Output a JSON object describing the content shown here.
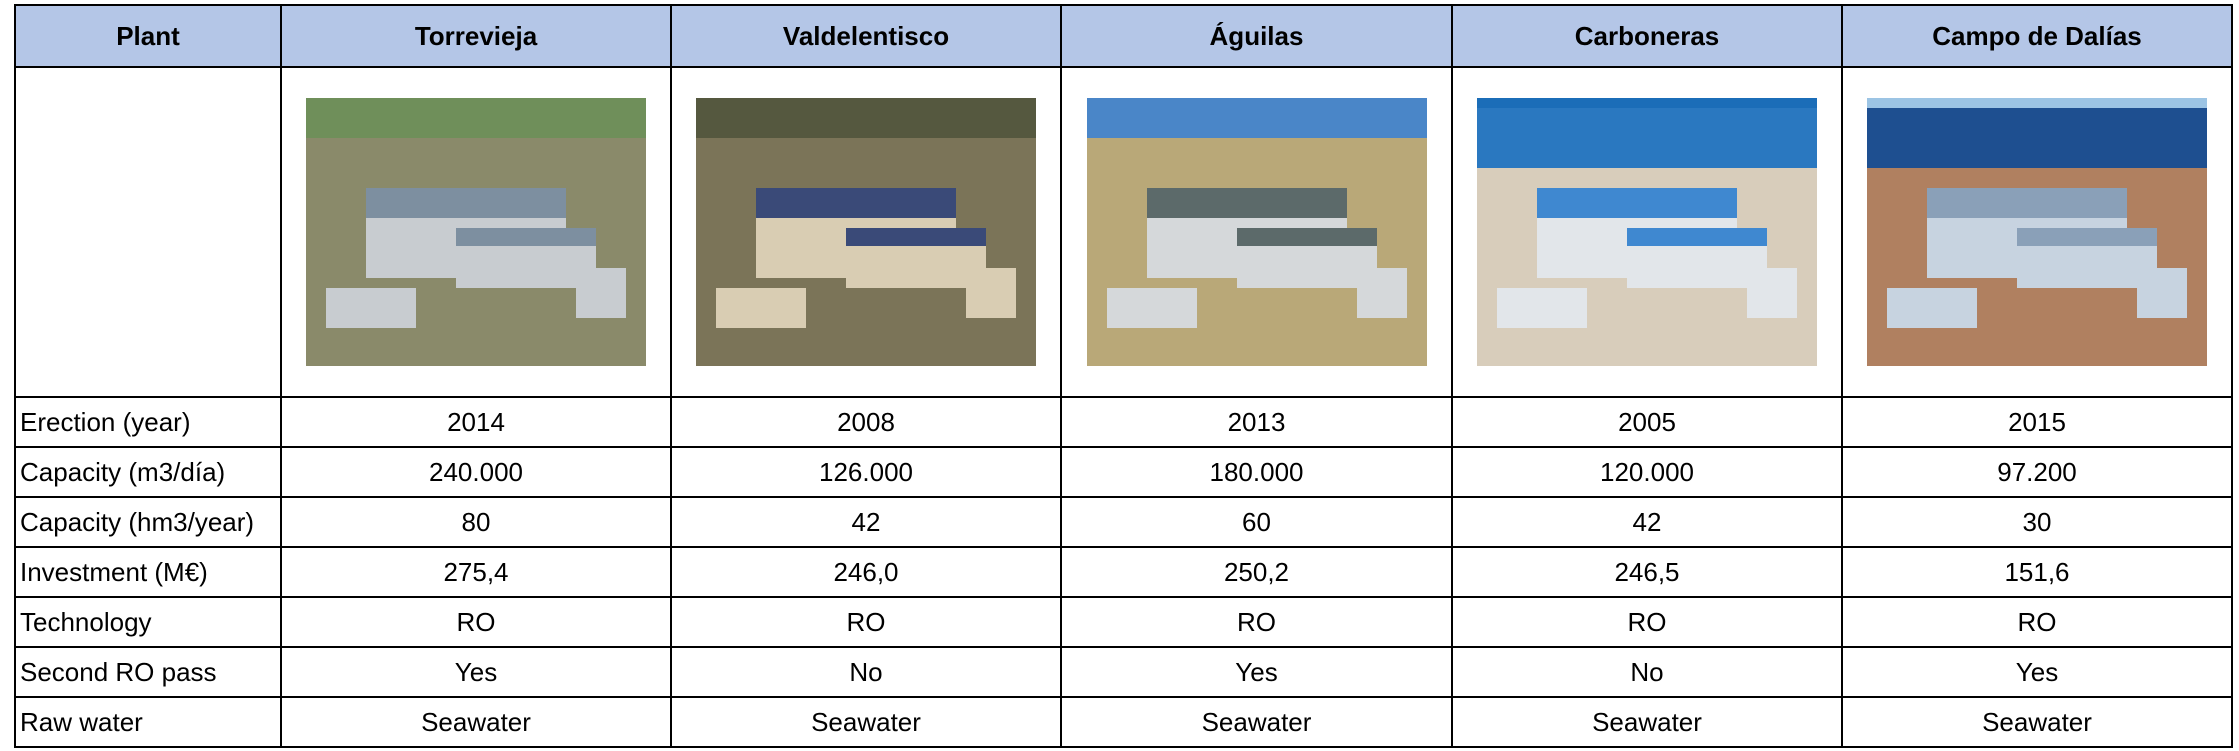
{
  "table": {
    "header": [
      "Plant",
      "Torrevieja",
      "Valdelentisco",
      "Águilas",
      "Carboneras",
      "Campo de Dalías"
    ],
    "rows": [
      [
        "Erection (year)",
        "2014",
        "2008",
        "2013",
        "2005",
        "2015"
      ],
      [
        "Capacity (m3/día)",
        "240.000",
        "126.000",
        "180.000",
        "120.000",
        "97.200"
      ],
      [
        "Capacity (hm3/year)",
        "80",
        "42",
        "60",
        "42",
        "30"
      ],
      [
        "Investment (M€)",
        "275,4",
        "246,0",
        "250,2",
        "246,5",
        "151,6"
      ],
      [
        "Technology",
        "RO",
        "RO",
        "RO",
        "RO",
        "RO"
      ],
      [
        "Second RO pass",
        "Yes",
        "No",
        "Yes",
        "No",
        "Yes"
      ],
      [
        "Raw water",
        "Seawater",
        "Seawater",
        "Seawater",
        "Seawater",
        "Seawater"
      ]
    ]
  }
}
